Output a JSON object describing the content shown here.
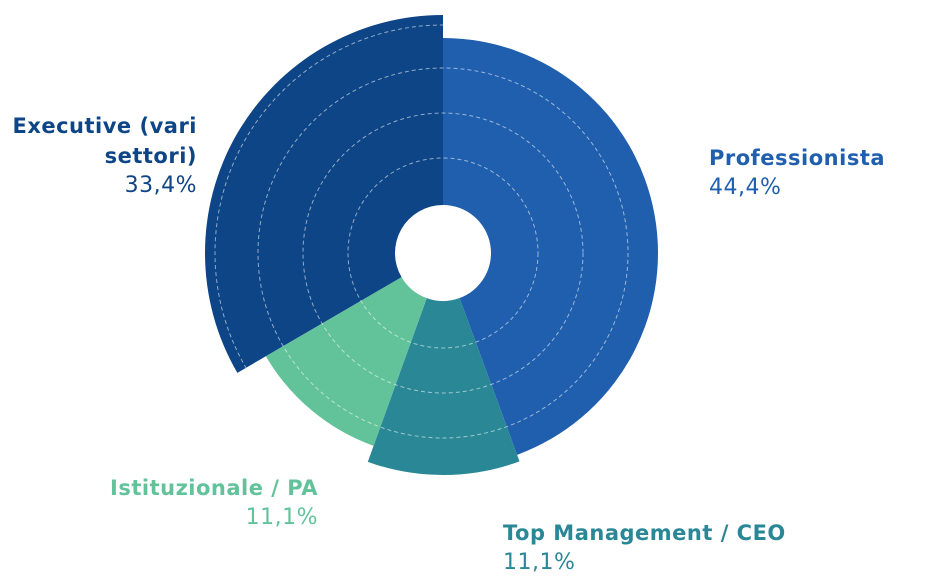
{
  "chart_data": {
    "type": "pie",
    "categories": [
      "Professionista",
      "Top Management / CEO",
      "Istituzionale / PA",
      "Executive (vari settori)"
    ],
    "values": [
      44.4,
      11.1,
      11.1,
      33.4
    ],
    "value_labels": [
      "44,4%",
      "11,1%",
      "11,1%",
      "33,4%"
    ],
    "colors": [
      "#1f5fae",
      "#2a8796",
      "#62c39b",
      "#0d4586"
    ]
  }
}
